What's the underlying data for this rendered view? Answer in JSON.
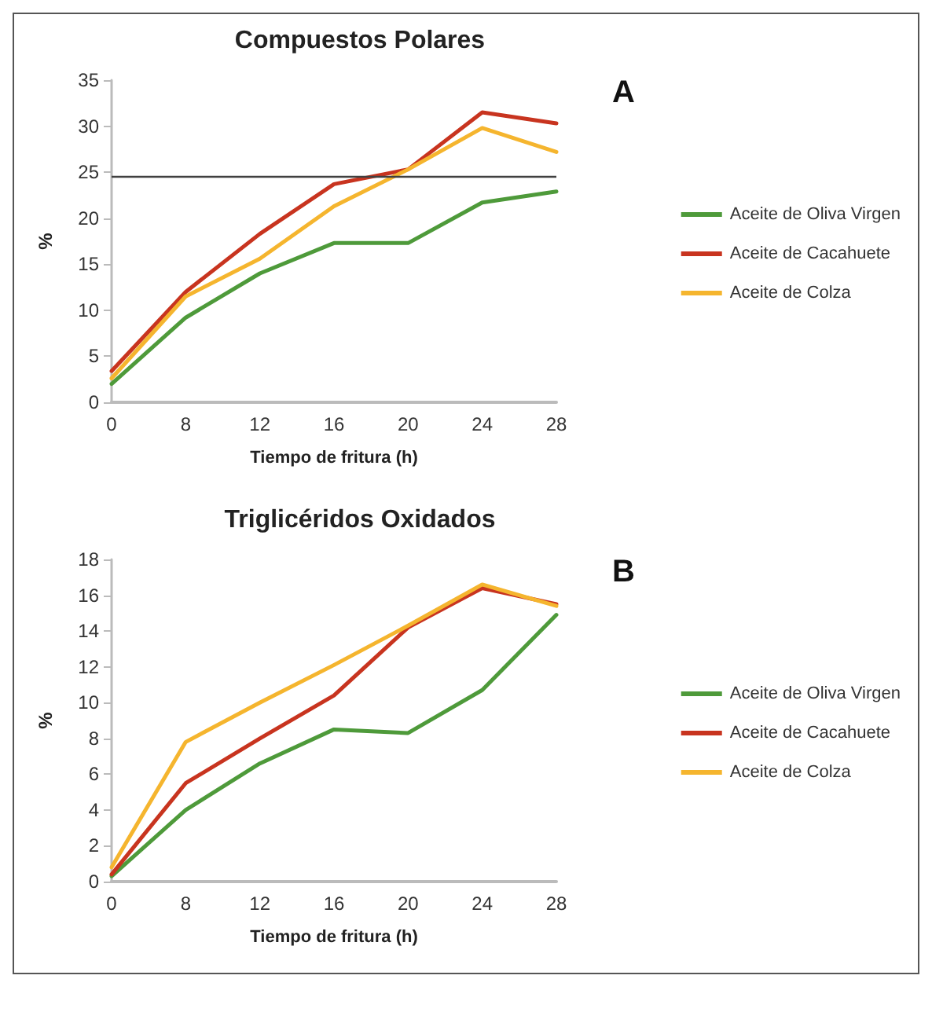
{
  "chart_data": [
    {
      "type": "line",
      "title": "Compuestos Polares",
      "xlabel": "Tiempo de fritura (h)",
      "ylabel": "%",
      "annotations": [
        "A"
      ],
      "categories": [
        "0",
        "8",
        "12",
        "16",
        "20",
        "24",
        "28"
      ],
      "ylim": [
        0,
        35
      ],
      "yticks": [
        0,
        5,
        10,
        15,
        20,
        25,
        30,
        35
      ],
      "grid": false,
      "legend": "right",
      "marker": "none",
      "ref_lines": [
        {
          "axis": "y",
          "value": 24.6,
          "color": "#404040"
        }
      ],
      "series": [
        {
          "name": "Aceite de Oliva Virgen",
          "color": "#4e9a3a",
          "values": [
            2,
            9.2,
            14,
            17.3,
            17.3,
            21.7,
            22.9
          ]
        },
        {
          "name": "Aceite de Cacahuete",
          "color": "#c8341f",
          "values": [
            3.4,
            12,
            18.3,
            23.7,
            25.3,
            31.5,
            30.3
          ]
        },
        {
          "name": "Aceite de Colza",
          "color": "#f5b52e",
          "values": [
            2.6,
            11.5,
            15.6,
            21.3,
            25.3,
            29.8,
            27.2
          ]
        }
      ]
    },
    {
      "type": "line",
      "title": "Triglicéridos Oxidados",
      "xlabel": "Tiempo de fritura (h)",
      "ylabel": "%",
      "annotations": [
        "B"
      ],
      "categories": [
        "0",
        "8",
        "12",
        "16",
        "20",
        "24",
        "28"
      ],
      "ylim": [
        0,
        18
      ],
      "yticks": [
        0,
        2,
        4,
        6,
        8,
        10,
        12,
        14,
        16,
        18
      ],
      "grid": false,
      "legend": "right",
      "marker": "none",
      "series": [
        {
          "name": "Aceite de Oliva Virgen",
          "color": "#4e9a3a",
          "values": [
            0.3,
            4,
            6.6,
            8.5,
            8.3,
            10.7,
            14.9
          ]
        },
        {
          "name": "Aceite de Cacahuete",
          "color": "#c8341f",
          "values": [
            0.4,
            5.5,
            8,
            10.4,
            14.2,
            16.4,
            15.5
          ]
        },
        {
          "name": "Aceite de Colza",
          "color": "#f5b52e",
          "values": [
            0.8,
            7.8,
            10,
            12.1,
            14.3,
            16.6,
            15.4
          ]
        }
      ]
    }
  ]
}
